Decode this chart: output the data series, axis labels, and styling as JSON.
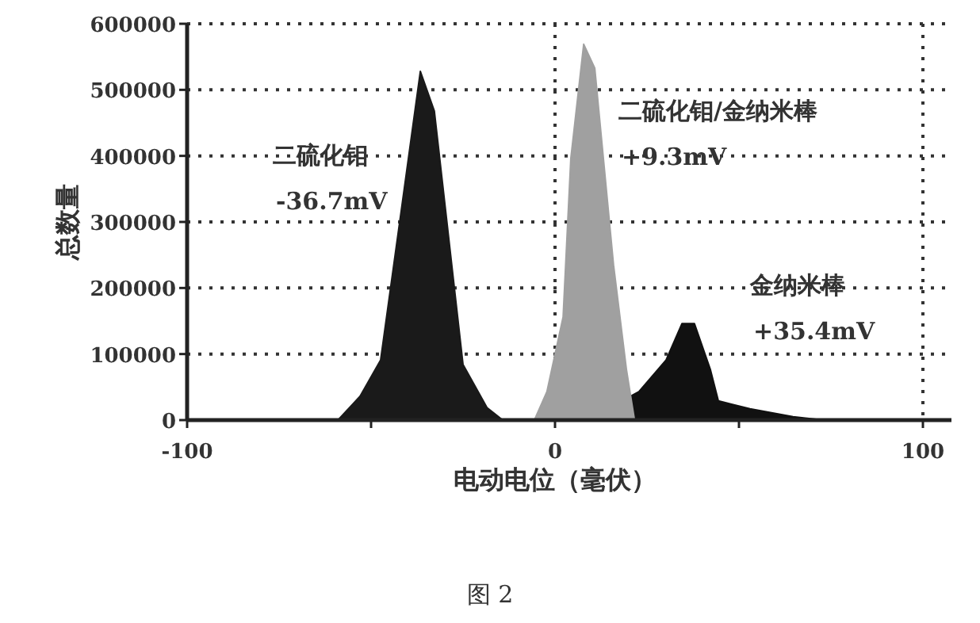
{
  "chart_data": {
    "type": "area",
    "xlabel": "电动电位（毫伏）",
    "ylabel": "总数量",
    "xlim": [
      -100,
      100
    ],
    "xticks": [
      -100,
      {
        "value": -50,
        "label": null
      },
      0,
      {
        "value": 50,
        "label": null
      },
      100
    ],
    "ylim": [
      0,
      600000
    ],
    "yticks": [
      0,
      100000,
      200000,
      300000,
      400000,
      500000,
      600000
    ],
    "grid": true,
    "line_style": "dotted",
    "series": [
      {
        "name": "二硫化钼",
        "color": "#1a1a1a",
        "x": [
          -59,
          -53,
          -47.4,
          -41.8,
          -36.6,
          -32.8,
          -28.9,
          -25,
          -18.5,
          -14.2
        ],
        "values": [
          0,
          36000,
          91000,
          317000,
          528000,
          468000,
          276000,
          84000,
          19000,
          0
        ]
      },
      {
        "name": "金纳米棒",
        "color": "#111111",
        "x": [
          8.6,
          22.8,
          30.2,
          34.5,
          37.9,
          42.2,
          44.4,
          53,
          64.7,
          73
        ],
        "values": [
          0,
          43000,
          91000,
          146000,
          146000,
          77000,
          29000,
          17000,
          5000,
          0
        ]
      },
      {
        "name": "二硫化钼/金纳米棒",
        "color": "#a0a0a0",
        "x": [
          -5.6,
          -2.2,
          2.2,
          4.3,
          7.8,
          10.8,
          15.9,
          19.4,
          21.6
        ],
        "values": [
          0,
          43000,
          156000,
          396000,
          569000,
          533000,
          235000,
          77000,
          0
        ]
      }
    ],
    "annotations": [
      "-36.7mV",
      "+35.4mV",
      "+9.3mV",
      "图 2"
    ]
  }
}
